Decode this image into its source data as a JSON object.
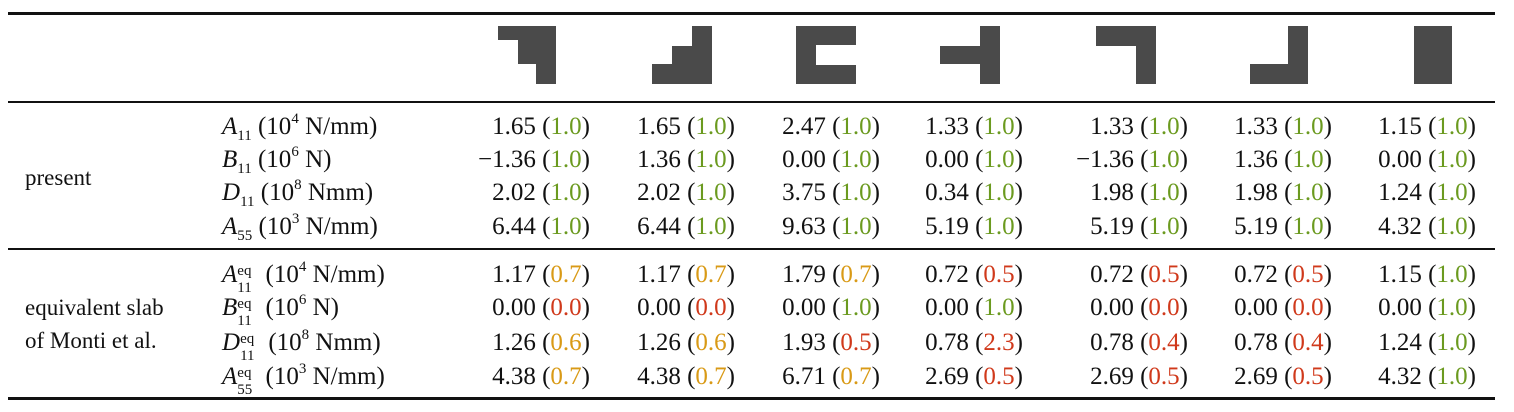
{
  "shape_icons": [
    "step-notch-top-right-icon",
    "l-shape-bottom-right-icon",
    "c-shape-open-right-icon",
    "t-shape-left-icon",
    "inverted-l-top-right-icon",
    "j-shape-bottom-right-icon",
    "solid-rectangle-icon"
  ],
  "colors": {
    "green": "#6b9a1f",
    "orange": "#d99a16",
    "red": "#d0391b",
    "shape_fill": "#4a4a4a"
  },
  "groups": [
    {
      "label_lines": [
        "present"
      ],
      "rows": [
        {
          "symbol": "A",
          "sub": "11",
          "sup": "",
          "unit_pre": "(10",
          "unit_exp": "4",
          "unit_post": " N/mm)",
          "cells": [
            [
              "1.65",
              "1.0",
              "g"
            ],
            [
              "1.65",
              "1.0",
              "g"
            ],
            [
              "2.47",
              "1.0",
              "g"
            ],
            [
              "1.33",
              "1.0",
              "g"
            ],
            [
              "1.33",
              "1.0",
              "g"
            ],
            [
              "1.33",
              "1.0",
              "g"
            ],
            [
              "1.15",
              "1.0",
              "g"
            ]
          ]
        },
        {
          "symbol": "B",
          "sub": "11",
          "sup": "",
          "unit_pre": "(10",
          "unit_exp": "6",
          "unit_post": " N)",
          "cells": [
            [
              "−1.36",
              "1.0",
              "g"
            ],
            [
              "1.36",
              "1.0",
              "g"
            ],
            [
              "0.00",
              "1.0",
              "g"
            ],
            [
              "0.00",
              "1.0",
              "g"
            ],
            [
              "−1.36",
              "1.0",
              "g"
            ],
            [
              "1.36",
              "1.0",
              "g"
            ],
            [
              "0.00",
              "1.0",
              "g"
            ]
          ]
        },
        {
          "symbol": "D",
          "sub": "11",
          "sup": "",
          "unit_pre": "(10",
          "unit_exp": "8",
          "unit_post": " Nmm)",
          "cells": [
            [
              "2.02",
              "1.0",
              "g"
            ],
            [
              "2.02",
              "1.0",
              "g"
            ],
            [
              "3.75",
              "1.0",
              "g"
            ],
            [
              "0.34",
              "1.0",
              "g"
            ],
            [
              "1.98",
              "1.0",
              "g"
            ],
            [
              "1.98",
              "1.0",
              "g"
            ],
            [
              "1.24",
              "1.0",
              "g"
            ]
          ]
        },
        {
          "symbol": "A",
          "sub": "55",
          "sup": "",
          "unit_pre": "(10",
          "unit_exp": "3",
          "unit_post": " N/mm)",
          "cells": [
            [
              "6.44",
              "1.0",
              "g"
            ],
            [
              "6.44",
              "1.0",
              "g"
            ],
            [
              "9.63",
              "1.0",
              "g"
            ],
            [
              "5.19",
              "1.0",
              "g"
            ],
            [
              "5.19",
              "1.0",
              "g"
            ],
            [
              "5.19",
              "1.0",
              "g"
            ],
            [
              "4.32",
              "1.0",
              "g"
            ]
          ]
        }
      ]
    },
    {
      "label_lines": [
        "equivalent slab",
        "of Monti et al."
      ],
      "rows": [
        {
          "symbol": "A",
          "sub": "11",
          "sup": "eq",
          "unit_pre": "(10",
          "unit_exp": "4",
          "unit_post": " N/mm)",
          "cells": [
            [
              "1.17",
              "0.7",
              "o"
            ],
            [
              "1.17",
              "0.7",
              "o"
            ],
            [
              "1.79",
              "0.7",
              "o"
            ],
            [
              "0.72",
              "0.5",
              "r"
            ],
            [
              "0.72",
              "0.5",
              "r"
            ],
            [
              "0.72",
              "0.5",
              "r"
            ],
            [
              "1.15",
              "1.0",
              "g"
            ]
          ]
        },
        {
          "symbol": "B",
          "sub": "11",
          "sup": "eq",
          "unit_pre": "(10",
          "unit_exp": "6",
          "unit_post": " N)",
          "cells": [
            [
              "0.00",
              "0.0",
              "r"
            ],
            [
              "0.00",
              "0.0",
              "r"
            ],
            [
              "0.00",
              "1.0",
              "g"
            ],
            [
              "0.00",
              "1.0",
              "g"
            ],
            [
              "0.00",
              "0.0",
              "r"
            ],
            [
              "0.00",
              "0.0",
              "r"
            ],
            [
              "0.00",
              "1.0",
              "g"
            ]
          ]
        },
        {
          "symbol": "D",
          "sub": "11",
          "sup": "eq",
          "unit_pre": "(10",
          "unit_exp": "8",
          "unit_post": " Nmm)",
          "cells": [
            [
              "1.26",
              "0.6",
              "o"
            ],
            [
              "1.26",
              "0.6",
              "o"
            ],
            [
              "1.93",
              "0.5",
              "r"
            ],
            [
              "0.78",
              "2.3",
              "r"
            ],
            [
              "0.78",
              "0.4",
              "r"
            ],
            [
              "0.78",
              "0.4",
              "r"
            ],
            [
              "1.24",
              "1.0",
              "g"
            ]
          ]
        },
        {
          "symbol": "A",
          "sub": "55",
          "sup": "eq",
          "unit_pre": "(10",
          "unit_exp": "3",
          "unit_post": " N/mm)",
          "cells": [
            [
              "4.38",
              "0.7",
              "o"
            ],
            [
              "4.38",
              "0.7",
              "o"
            ],
            [
              "6.71",
              "0.7",
              "o"
            ],
            [
              "2.69",
              "0.5",
              "r"
            ],
            [
              "2.69",
              "0.5",
              "r"
            ],
            [
              "2.69",
              "0.5",
              "r"
            ],
            [
              "4.32",
              "1.0",
              "g"
            ]
          ]
        }
      ]
    }
  ]
}
